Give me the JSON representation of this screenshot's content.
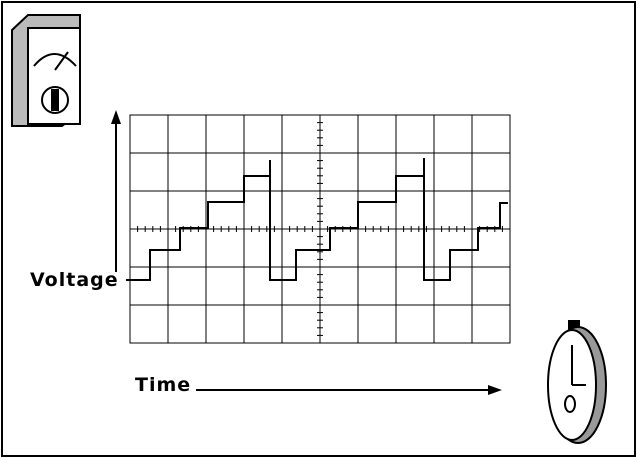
{
  "labels": {
    "voltage": "Voltage",
    "time": "Time"
  }
}
